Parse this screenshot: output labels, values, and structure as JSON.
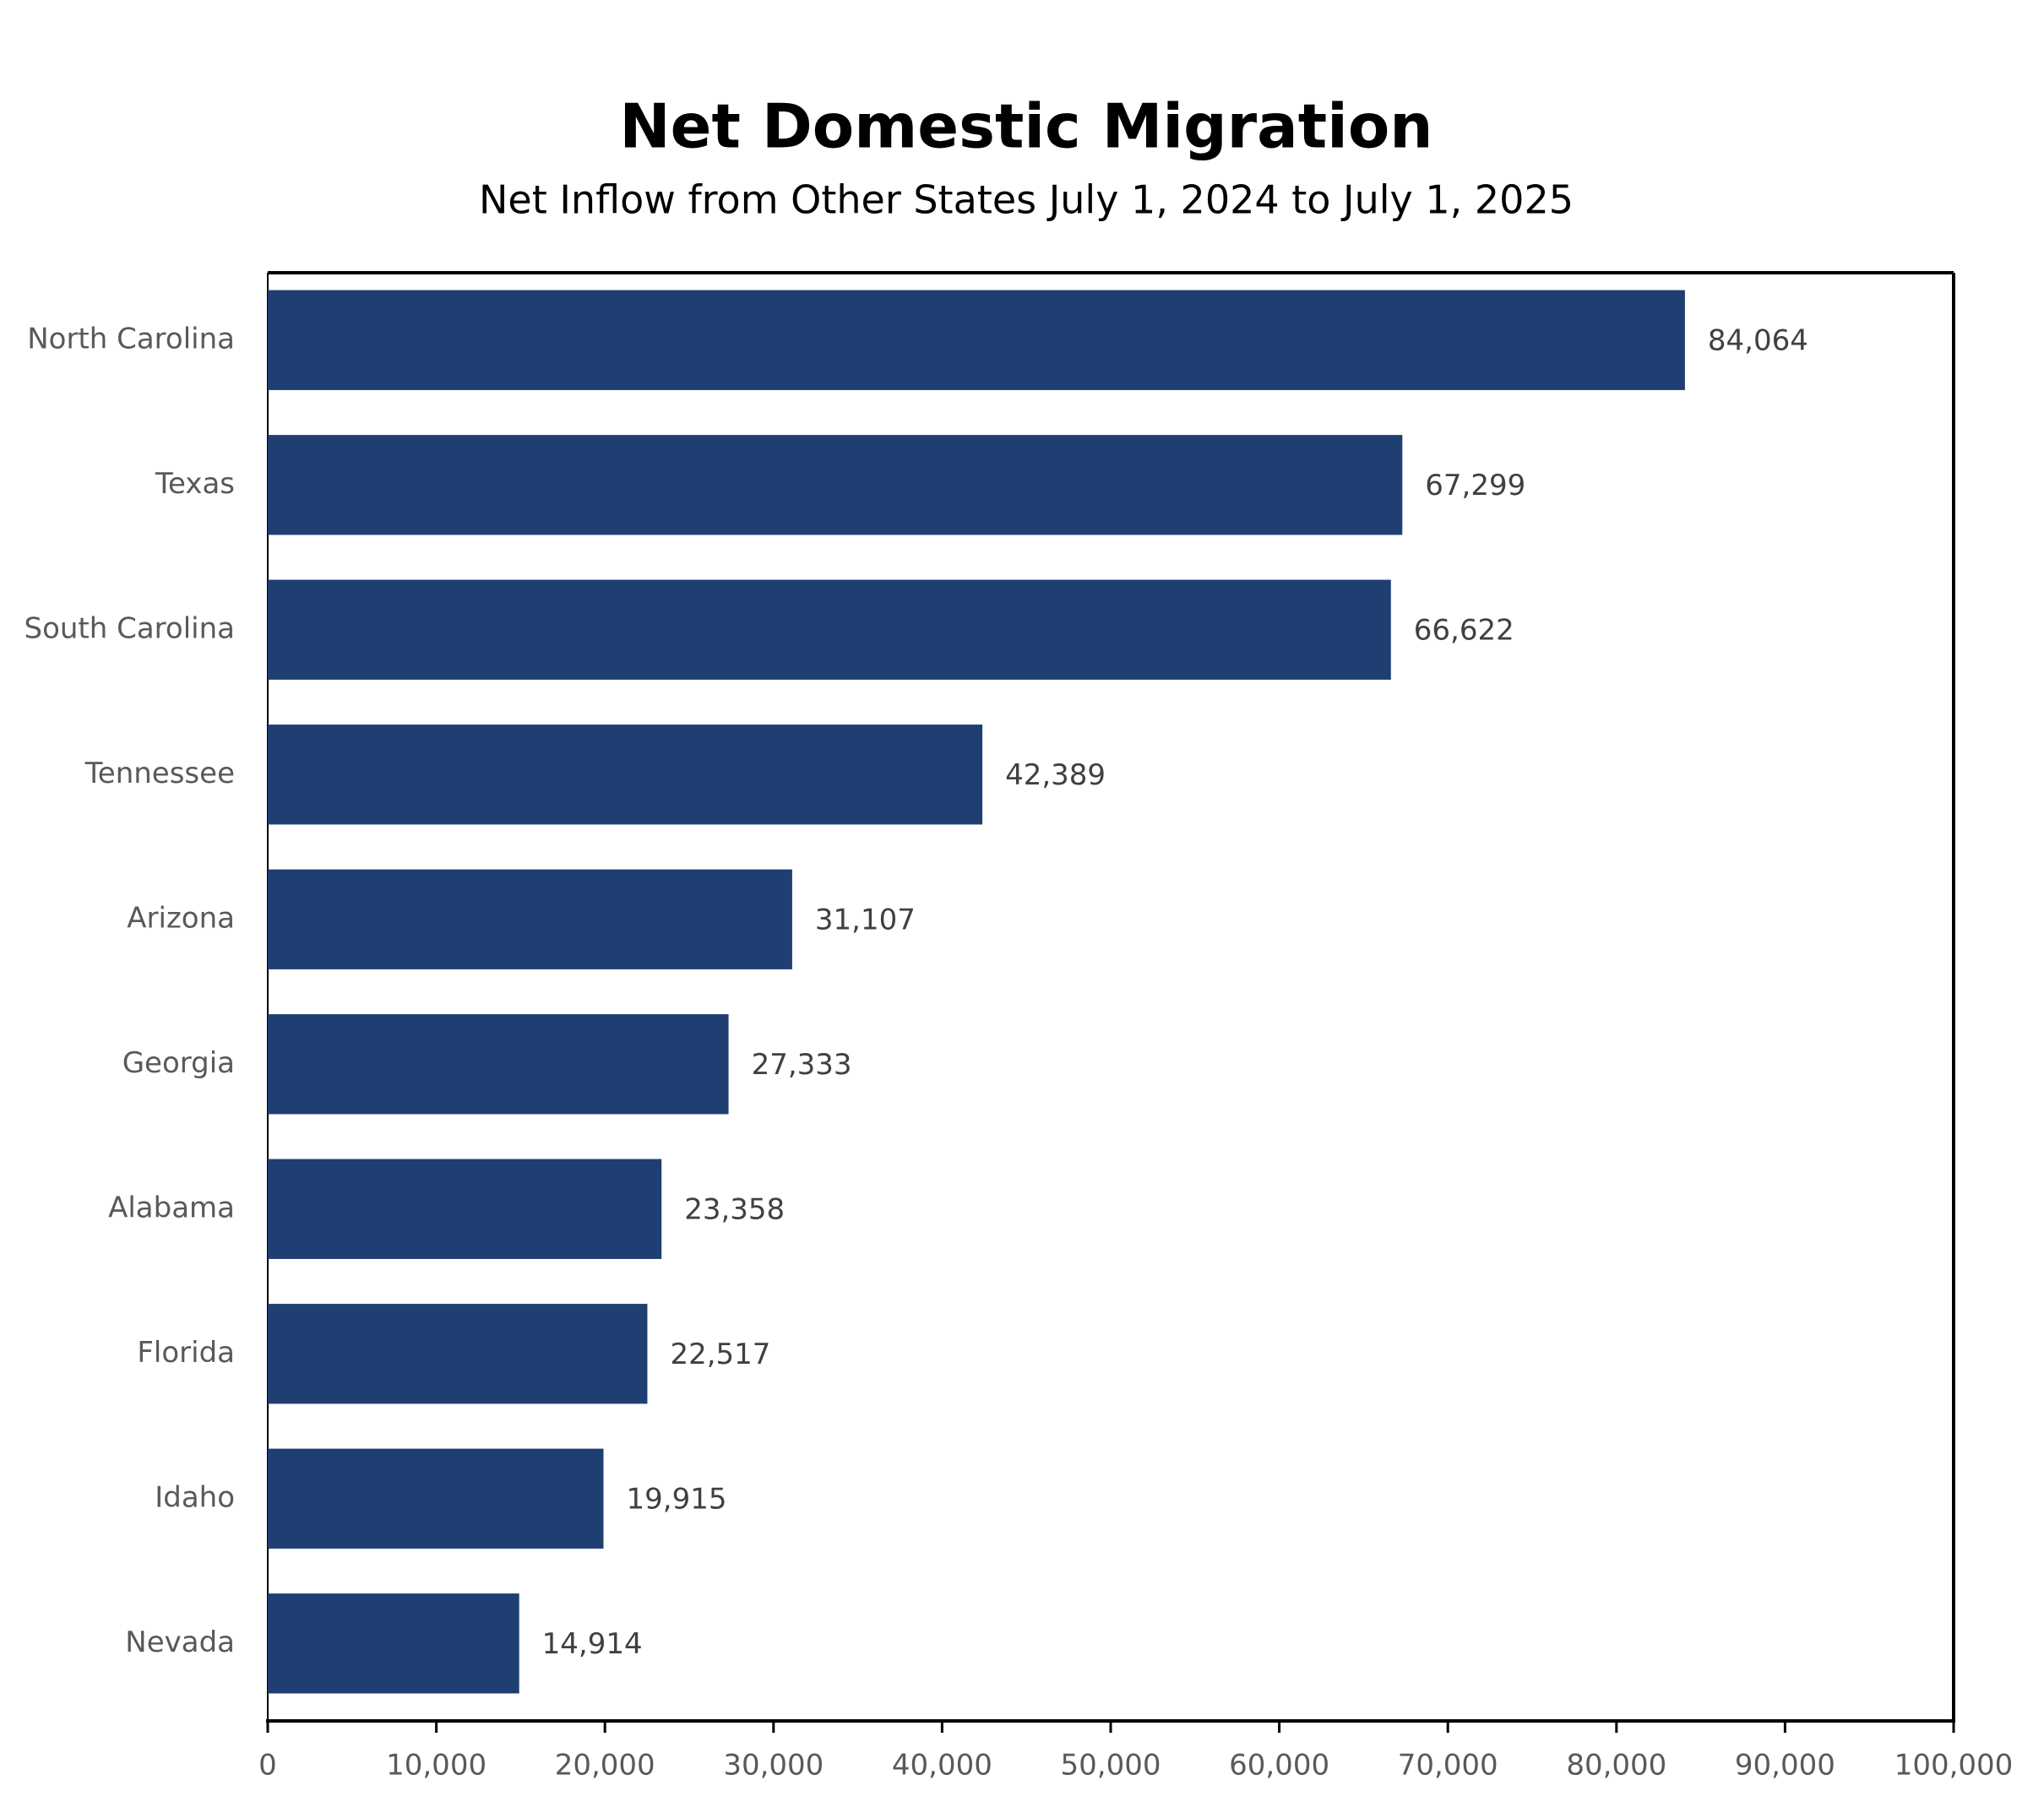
{
  "chart_data": {
    "type": "hbar",
    "title": "Net Domestic Migration",
    "subtitle": "Net Inflow from Other States July 1, 2024 to July 1, 2025",
    "categories": [
      "North Carolina",
      "Texas",
      "South Carolina",
      "Tennessee",
      "Arizona",
      "Georgia",
      "Alabama",
      "Florida",
      "Idaho",
      "Nevada"
    ],
    "values": [
      84064,
      67299,
      66622,
      42389,
      31107,
      27333,
      23358,
      22517,
      19915,
      14914
    ],
    "value_labels": [
      "84,064",
      "67,299",
      "66,622",
      "42,389",
      "31,107",
      "27,333",
      "23,358",
      "22,517",
      "19,915",
      "14,914"
    ],
    "color": "#1f3e72",
    "xlim": [
      0,
      100000
    ],
    "xticks": [
      0,
      {
        "value": 10000,
        "label": "10,000"
      },
      {
        "value": 20000,
        "label": "20,000"
      },
      {
        "value": 30000,
        "label": "30,000"
      },
      {
        "value": 40000,
        "label": "40,000"
      },
      {
        "value": 50000,
        "label": "50,000"
      },
      {
        "value": 60000,
        "label": "60,000"
      },
      {
        "value": 70000,
        "label": "70,000"
      },
      {
        "value": 80000,
        "label": "80,000"
      },
      {
        "value": 90000,
        "label": "90,000"
      },
      {
        "value": 100000,
        "label": "100,000"
      }
    ],
    "grid": false
  }
}
